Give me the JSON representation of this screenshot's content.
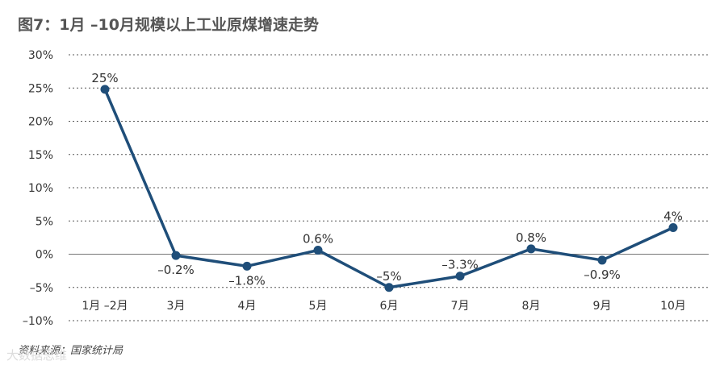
{
  "title": "图7：1月 –10月规模以上工业原煤增速走势",
  "source": "资料来源：国家统计局",
  "watermark": "大数据思维",
  "chart_data": {
    "type": "line",
    "categories": [
      "1月 –2月",
      "3月",
      "4月",
      "5月",
      "6月",
      "7月",
      "8月",
      "9月",
      "10月"
    ],
    "values": [
      24.8,
      -0.2,
      -1.8,
      0.6,
      -5.0,
      -3.3,
      0.8,
      -0.9,
      4.0
    ],
    "data_labels": [
      "25%",
      "–0.2%",
      "–1.8%",
      "0.6%",
      "–5%",
      "–3.3%",
      "0.8%",
      "–0.9%",
      "4%"
    ],
    "label_positions": [
      "above",
      "below",
      "below",
      "above",
      "above",
      "above",
      "above",
      "below",
      "above"
    ],
    "y_ticks": [
      30,
      25,
      20,
      15,
      10,
      5,
      0,
      -5,
      -10
    ],
    "y_tick_labels": [
      "30%",
      "25%",
      "20%",
      "15%",
      "10%",
      "5%",
      "0%",
      "–5%",
      "–10%"
    ],
    "ylim": [
      -10,
      30
    ],
    "grid": true,
    "colors": {
      "line": "#1f4e79",
      "grid": "#555555",
      "zero_line": "#777777"
    }
  }
}
